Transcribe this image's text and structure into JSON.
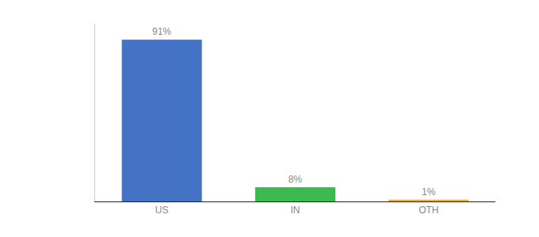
{
  "chart_data": {
    "type": "bar",
    "categories": [
      "US",
      "IN",
      "OTH"
    ],
    "values": [
      91,
      8,
      1
    ],
    "value_labels": [
      "91%",
      "8%",
      "1%"
    ],
    "colors": [
      "#4472c4",
      "#3dba4e",
      "#f5a623"
    ],
    "ylim": [
      0,
      100
    ],
    "data_labels": true,
    "tick_labels": "x",
    "grid": false
  }
}
